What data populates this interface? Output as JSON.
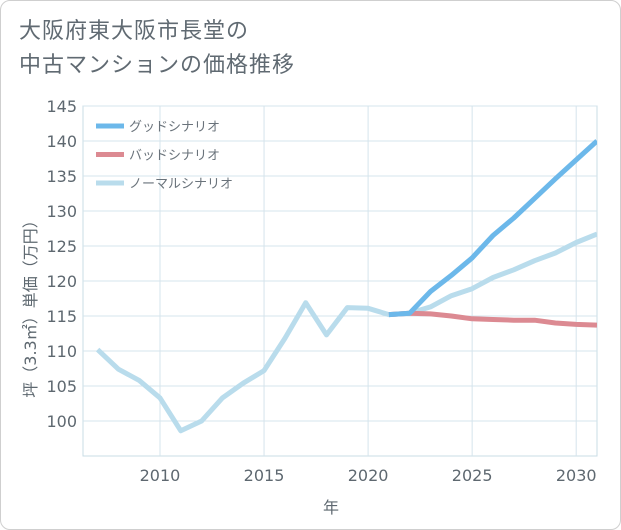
{
  "title": {
    "line1": "大阪府東大阪市長堂の",
    "line2": "中古マンションの価格推移"
  },
  "chart_data": {
    "type": "line",
    "title": "大阪府東大阪市長堂の中古マンションの価格推移",
    "xlabel": "年",
    "ylabel": "坪（3.3㎡）単価（万円）",
    "xlim": [
      2006.3,
      2031
    ],
    "ylim": [
      95,
      145
    ],
    "xticks": [
      2010,
      2015,
      2020,
      2025,
      2030
    ],
    "yticks": [
      100,
      105,
      110,
      115,
      120,
      125,
      130,
      135,
      140,
      145
    ],
    "legend_position": "top-left",
    "series": [
      {
        "name": "グッドシナリオ",
        "color": "#6cb8ea",
        "x": [
          2021,
          2022,
          2023,
          2024,
          2025,
          2026,
          2027,
          2028,
          2029,
          2030,
          2031
        ],
        "values": [
          115.2,
          115.4,
          118.5,
          120.8,
          123.3,
          126.5,
          129.0,
          131.8,
          134.6,
          137.3,
          140.0
        ]
      },
      {
        "name": "バッドシナリオ",
        "color": "#dc8a92",
        "x": [
          2021,
          2022,
          2023,
          2024,
          2025,
          2026,
          2027,
          2028,
          2029,
          2030,
          2031
        ],
        "values": [
          115.2,
          115.4,
          115.3,
          115.0,
          114.6,
          114.5,
          114.4,
          114.4,
          114.0,
          113.8,
          113.7
        ]
      },
      {
        "name": "ノーマルシナリオ",
        "color": "#b9dcec",
        "x": [
          2007,
          2008,
          2009,
          2010,
          2011,
          2012,
          2013,
          2014,
          2015,
          2016,
          2017,
          2018,
          2019,
          2020,
          2021,
          2022,
          2023,
          2024,
          2025,
          2026,
          2027,
          2028,
          2029,
          2030,
          2031
        ],
        "values": [
          110.2,
          107.4,
          105.8,
          103.3,
          98.6,
          100.0,
          103.3,
          105.4,
          107.2,
          111.8,
          116.9,
          112.3,
          116.2,
          116.1,
          115.2,
          115.4,
          116.3,
          117.9,
          118.9,
          120.5,
          121.6,
          122.9,
          124.0,
          125.5,
          126.7
        ]
      }
    ]
  }
}
